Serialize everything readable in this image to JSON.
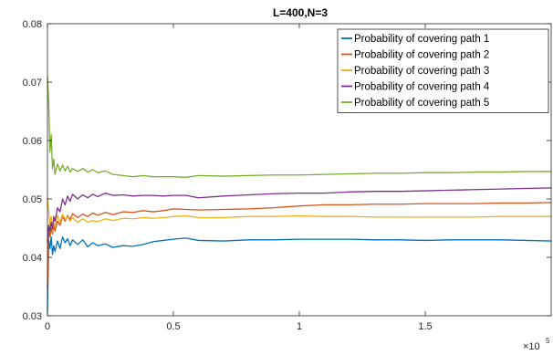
{
  "chart_data": {
    "type": "line",
    "title": "L=400,N=3",
    "xlabel": "",
    "ylabel": "",
    "xlim": [
      0,
      200000
    ],
    "ylim": [
      0.03,
      0.08
    ],
    "x_ticks": [
      0,
      50000,
      100000,
      150000
    ],
    "x_tick_labels": [
      "0",
      "0.5",
      "1",
      "1.5"
    ],
    "x_exponent_label": "×10",
    "x_exponent_power": "5",
    "y_ticks": [
      0.03,
      0.04,
      0.05,
      0.06,
      0.07,
      0.08
    ],
    "y_tick_labels": [
      "0.03",
      "0.04",
      "0.05",
      "0.06",
      "0.07",
      "0.08"
    ],
    "grid": false,
    "legend_position": "top-right",
    "series": [
      {
        "name": "Probability of covering path 1",
        "color": "#0072BD",
        "points": [
          [
            0,
            0.0305
          ],
          [
            500,
            0.043
          ],
          [
            1000,
            0.0415
          ],
          [
            1500,
            0.0435
          ],
          [
            2000,
            0.0405
          ],
          [
            2500,
            0.042
          ],
          [
            3000,
            0.041
          ],
          [
            4000,
            0.0428
          ],
          [
            5000,
            0.0415
          ],
          [
            6000,
            0.0435
          ],
          [
            7000,
            0.0425
          ],
          [
            8000,
            0.0432
          ],
          [
            9000,
            0.042
          ],
          [
            10000,
            0.043
          ],
          [
            12000,
            0.0422
          ],
          [
            14000,
            0.043
          ],
          [
            16000,
            0.0418
          ],
          [
            18000,
            0.0425
          ],
          [
            20000,
            0.042
          ],
          [
            23000,
            0.0423
          ],
          [
            26000,
            0.0417
          ],
          [
            30000,
            0.042
          ],
          [
            34000,
            0.0419
          ],
          [
            38000,
            0.0422
          ],
          [
            42000,
            0.0427
          ],
          [
            46000,
            0.0429
          ],
          [
            50000,
            0.0431
          ],
          [
            55000,
            0.0433
          ],
          [
            60000,
            0.0429
          ],
          [
            70000,
            0.0428
          ],
          [
            80000,
            0.043
          ],
          [
            90000,
            0.043
          ],
          [
            100000,
            0.0431
          ],
          [
            110000,
            0.0431
          ],
          [
            120000,
            0.0431
          ],
          [
            130000,
            0.043
          ],
          [
            140000,
            0.043
          ],
          [
            150000,
            0.0429
          ],
          [
            160000,
            0.043
          ],
          [
            170000,
            0.043
          ],
          [
            180000,
            0.043
          ],
          [
            190000,
            0.0429
          ],
          [
            200000,
            0.0428
          ]
        ]
      },
      {
        "name": "Probability of covering path 2",
        "color": "#D95319",
        "points": [
          [
            0,
            0.0345
          ],
          [
            500,
            0.045
          ],
          [
            1000,
            0.0435
          ],
          [
            1500,
            0.045
          ],
          [
            2000,
            0.044
          ],
          [
            2500,
            0.0455
          ],
          [
            3000,
            0.0445
          ],
          [
            4000,
            0.0462
          ],
          [
            5000,
            0.0455
          ],
          [
            6000,
            0.047
          ],
          [
            7000,
            0.0462
          ],
          [
            8000,
            0.0472
          ],
          [
            9000,
            0.0465
          ],
          [
            10000,
            0.0475
          ],
          [
            12000,
            0.0468
          ],
          [
            14000,
            0.0474
          ],
          [
            16000,
            0.047
          ],
          [
            18000,
            0.0476
          ],
          [
            20000,
            0.0472
          ],
          [
            23000,
            0.0477
          ],
          [
            26000,
            0.0473
          ],
          [
            30000,
            0.0478
          ],
          [
            34000,
            0.0477
          ],
          [
            38000,
            0.048
          ],
          [
            42000,
            0.0478
          ],
          [
            46000,
            0.048
          ],
          [
            50000,
            0.0483
          ],
          [
            55000,
            0.0482
          ],
          [
            60000,
            0.0481
          ],
          [
            70000,
            0.0482
          ],
          [
            80000,
            0.0483
          ],
          [
            90000,
            0.0485
          ],
          [
            100000,
            0.0488
          ],
          [
            110000,
            0.049
          ],
          [
            120000,
            0.049
          ],
          [
            130000,
            0.0491
          ],
          [
            140000,
            0.0491
          ],
          [
            150000,
            0.0492
          ],
          [
            160000,
            0.0492
          ],
          [
            170000,
            0.0492
          ],
          [
            180000,
            0.0493
          ],
          [
            190000,
            0.0493
          ],
          [
            200000,
            0.0494
          ]
        ]
      },
      {
        "name": "Probability of covering path 3",
        "color": "#EDB120",
        "points": [
          [
            0,
            0.0502
          ],
          [
            500,
            0.048
          ],
          [
            1000,
            0.0455
          ],
          [
            1500,
            0.047
          ],
          [
            2000,
            0.0445
          ],
          [
            2500,
            0.0462
          ],
          [
            3000,
            0.0452
          ],
          [
            4000,
            0.0472
          ],
          [
            5000,
            0.046
          ],
          [
            6000,
            0.0474
          ],
          [
            7000,
            0.0465
          ],
          [
            8000,
            0.047
          ],
          [
            9000,
            0.0462
          ],
          [
            10000,
            0.0468
          ],
          [
            12000,
            0.046
          ],
          [
            14000,
            0.0466
          ],
          [
            16000,
            0.046
          ],
          [
            18000,
            0.0463
          ],
          [
            20000,
            0.0461
          ],
          [
            23000,
            0.0466
          ],
          [
            26000,
            0.0463
          ],
          [
            30000,
            0.0467
          ],
          [
            34000,
            0.0466
          ],
          [
            38000,
            0.0468
          ],
          [
            42000,
            0.0467
          ],
          [
            46000,
            0.0468
          ],
          [
            50000,
            0.047
          ],
          [
            55000,
            0.0471
          ],
          [
            60000,
            0.0468
          ],
          [
            70000,
            0.0468
          ],
          [
            80000,
            0.047
          ],
          [
            90000,
            0.047
          ],
          [
            100000,
            0.0471
          ],
          [
            110000,
            0.047
          ],
          [
            120000,
            0.047
          ],
          [
            130000,
            0.0469
          ],
          [
            140000,
            0.0469
          ],
          [
            150000,
            0.0469
          ],
          [
            160000,
            0.0469
          ],
          [
            170000,
            0.0469
          ],
          [
            180000,
            0.047
          ],
          [
            190000,
            0.047
          ],
          [
            200000,
            0.047
          ]
        ]
      },
      {
        "name": "Probability of covering path 4",
        "color": "#7E2F8E",
        "points": [
          [
            0,
            0.0425
          ],
          [
            500,
            0.0455
          ],
          [
            1000,
            0.0445
          ],
          [
            1500,
            0.046
          ],
          [
            2000,
            0.0448
          ],
          [
            2500,
            0.047
          ],
          [
            3000,
            0.0462
          ],
          [
            4000,
            0.0485
          ],
          [
            5000,
            0.0478
          ],
          [
            6000,
            0.05
          ],
          [
            7000,
            0.049
          ],
          [
            8000,
            0.0505
          ],
          [
            9000,
            0.0496
          ],
          [
            10000,
            0.0508
          ],
          [
            12000,
            0.05
          ],
          [
            14000,
            0.0507
          ],
          [
            16000,
            0.0502
          ],
          [
            18000,
            0.0508
          ],
          [
            20000,
            0.0504
          ],
          [
            23000,
            0.051
          ],
          [
            26000,
            0.0506
          ],
          [
            30000,
            0.0507
          ],
          [
            34000,
            0.0505
          ],
          [
            38000,
            0.0506
          ],
          [
            42000,
            0.0506
          ],
          [
            46000,
            0.0505
          ],
          [
            50000,
            0.0506
          ],
          [
            55000,
            0.0506
          ],
          [
            60000,
            0.0502
          ],
          [
            70000,
            0.0505
          ],
          [
            80000,
            0.0507
          ],
          [
            90000,
            0.0509
          ],
          [
            100000,
            0.051
          ],
          [
            110000,
            0.051
          ],
          [
            120000,
            0.0512
          ],
          [
            130000,
            0.0513
          ],
          [
            140000,
            0.0513
          ],
          [
            150000,
            0.0514
          ],
          [
            160000,
            0.0515
          ],
          [
            170000,
            0.0516
          ],
          [
            180000,
            0.0517
          ],
          [
            190000,
            0.0518
          ],
          [
            200000,
            0.0519
          ]
        ]
      },
      {
        "name": "Probability of covering path 5",
        "color": "#77AC30",
        "points": [
          [
            0,
            0.071
          ],
          [
            500,
            0.0665
          ],
          [
            1000,
            0.058
          ],
          [
            1500,
            0.061
          ],
          [
            2000,
            0.0552
          ],
          [
            2500,
            0.0568
          ],
          [
            3000,
            0.0542
          ],
          [
            4000,
            0.056
          ],
          [
            5000,
            0.0548
          ],
          [
            6000,
            0.0558
          ],
          [
            7000,
            0.0548
          ],
          [
            8000,
            0.0556
          ],
          [
            9000,
            0.0546
          ],
          [
            10000,
            0.0552
          ],
          [
            12000,
            0.0547
          ],
          [
            14000,
            0.0552
          ],
          [
            16000,
            0.0546
          ],
          [
            18000,
            0.055
          ],
          [
            20000,
            0.0545
          ],
          [
            23000,
            0.0548
          ],
          [
            26000,
            0.0542
          ],
          [
            30000,
            0.054
          ],
          [
            34000,
            0.0538
          ],
          [
            38000,
            0.054
          ],
          [
            42000,
            0.0538
          ],
          [
            46000,
            0.0538
          ],
          [
            50000,
            0.0538
          ],
          [
            55000,
            0.0537
          ],
          [
            60000,
            0.054
          ],
          [
            70000,
            0.0539
          ],
          [
            80000,
            0.054
          ],
          [
            90000,
            0.0541
          ],
          [
            100000,
            0.0541
          ],
          [
            110000,
            0.0542
          ],
          [
            120000,
            0.0543
          ],
          [
            130000,
            0.0544
          ],
          [
            140000,
            0.0544
          ],
          [
            150000,
            0.0545
          ],
          [
            160000,
            0.0545
          ],
          [
            170000,
            0.0546
          ],
          [
            180000,
            0.0546
          ],
          [
            190000,
            0.0547
          ],
          [
            200000,
            0.0547
          ]
        ]
      }
    ]
  }
}
